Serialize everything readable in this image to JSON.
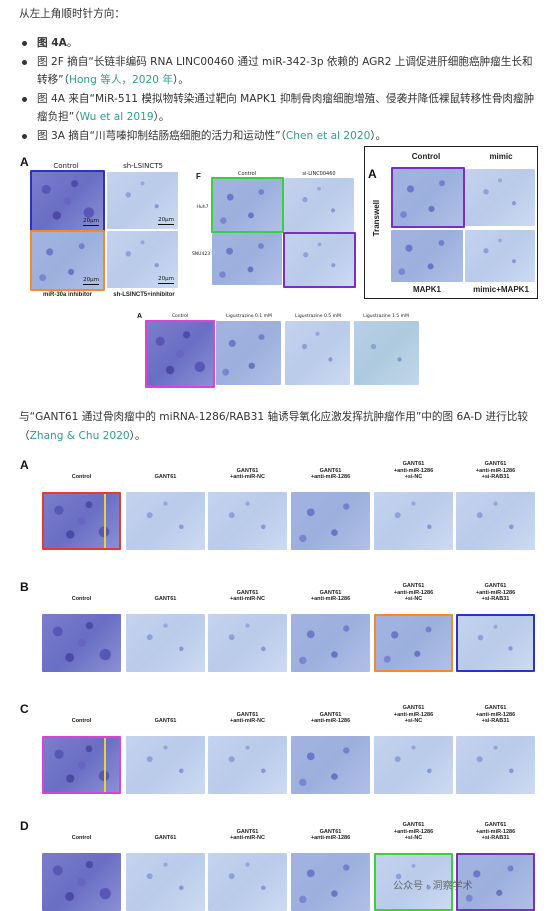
{
  "intro": "从左上角顺时针方向：",
  "bullets": [
    {
      "parts": [
        {
          "t": "图 4A",
          "b": true
        },
        {
          "t": "。"
        }
      ]
    },
    {
      "parts": [
        {
          "t": "图 2F 摘自“长链非编码 RNA LINC00460 通过 miR-342-3p 依赖的 AGR2 上调促进肝细胞癌肿瘤生长和转移”（"
        },
        {
          "t": "Hong 等人，2020 年",
          "link": true
        },
        {
          "t": "）。"
        }
      ]
    },
    {
      "parts": [
        {
          "t": "图 4A 来自“MiR-511 模拟物转染通过靶向 MAPK1 抑制骨肉瘤细胞增殖、侵袭并降低裸鼠转移性骨肉瘤肿瘤负担”（"
        },
        {
          "t": "Wu et al 2019",
          "link": true
        },
        {
          "t": "）。"
        }
      ]
    },
    {
      "parts": [
        {
          "t": "图 3A 摘自“川芎嗪抑制结肠癌细胞的活力和运动性”（"
        },
        {
          "t": "Chen et al 2020",
          "link": true
        },
        {
          "t": "）。"
        }
      ]
    }
  ],
  "fig1": {
    "left": {
      "letter": "A",
      "col1": "Control",
      "col2": "sh-LSINCT5",
      "row2a": "miR-30a inhibitor",
      "row2b": "sh-LSINCT5+inhibitor",
      "scale": "20μm"
    },
    "middle": {
      "letter": "F",
      "col1": "Control",
      "col2": "si-LINC00460",
      "row1": "Huh7",
      "row2": "SNU423"
    },
    "right": {
      "letter": "A",
      "col1": "Control",
      "col2": "mimic",
      "side": "Transwell",
      "bot1": "MAPK1",
      "bot2": "mimic+MAPK1"
    },
    "bottom": {
      "letter": "A",
      "cols": [
        "Control",
        "Ligustrazine 0.1 mM",
        "Ligustrazine 0.5 mM",
        "Ligustrazine 1.5 mM"
      ]
    }
  },
  "compare_text": {
    "before": "与“GANT61 通过骨肉瘤中的 miRNA-1286/RAB31 轴诱导氧化应激发挥抗肿瘤作用”中的图 6A-D 进行比较（",
    "link": "Zhang & Chu 2020",
    "after": "）。"
  },
  "fig2": {
    "rows": [
      {
        "letter": "A",
        "cols": [
          "Control",
          "GANT61",
          "GANT61\n+anti-miR-NC",
          "GANT61\n+anti-miR-1286",
          "GANT61\n+anti-miR-1286\n+si-NC",
          "GANT61\n+anti-miR-1286\n+si-RAB31"
        ]
      },
      {
        "letter": "B",
        "cols": [
          "Control",
          "GANT61",
          "GANT61\n+anti-miR-NC",
          "GANT61\n+anti-miR-1286",
          "GANT61\n+anti-miR-1286\n+si-NC",
          "GANT61\n+anti-miR-1286\n+si-RAB31"
        ]
      },
      {
        "letter": "C",
        "cols": [
          "Control",
          "GANT61",
          "GANT61\n+anti-miR-NC",
          "GANT61\n+anti-miR-1286",
          "GANT61\n+anti-miR-1286\n+si-NC",
          "GANT61\n+anti-miR-1286\n+si-RAB31"
        ]
      },
      {
        "letter": "D",
        "cols": [
          "Control",
          "GANT61",
          "GANT61\n+anti-miR-NC",
          "GANT61\n+anti-miR-1286",
          "GANT61\n+anti-miR-1286\n+si-NC",
          "GANT61\n+anti-miR-1286\n+si-RAB31"
        ]
      }
    ]
  },
  "watermark": "公众号 · 洞察学术",
  "colors": {
    "red": "#e43b2f",
    "blue": "#2a32c8",
    "orange": "#f08a2c",
    "green": "#3bd13b",
    "purple": "#7b2fbf",
    "magenta": "#e23fd4",
    "link": "#2e9d8f"
  }
}
